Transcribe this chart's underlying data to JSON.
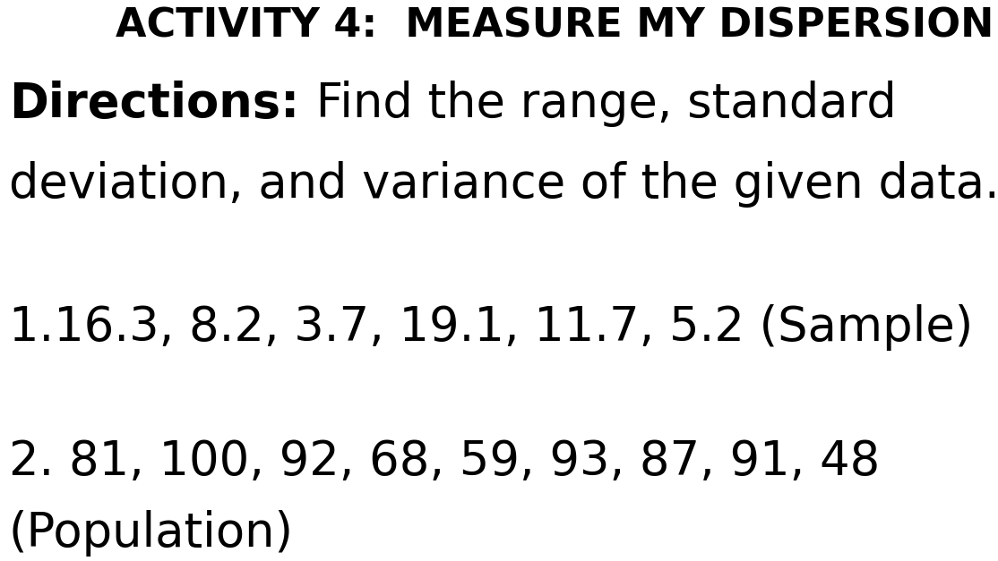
{
  "background_color": "#ffffff",
  "title": "ACTIVITY 4:  MEASURE MY DISPERSION",
  "directions_bold": "Directions:",
  "directions_rest_line1": " Find the range, standard",
  "directions_line2": "deviation, and variance of the given data.",
  "item1": "1.16.3, 8.2, 3.7, 19.1, 11.7, 5.2 (Sample)",
  "item2_line1": "2. 81, 100, 92, 68, 59, 93, 87, 91, 48",
  "item2_line2": "(Population)",
  "text_color": "#000000",
  "title_fontsize": 32,
  "directions_fontsize": 38,
  "item_fontsize": 38,
  "fig_width": 11.14,
  "fig_height": 6.27,
  "dpi": 100
}
